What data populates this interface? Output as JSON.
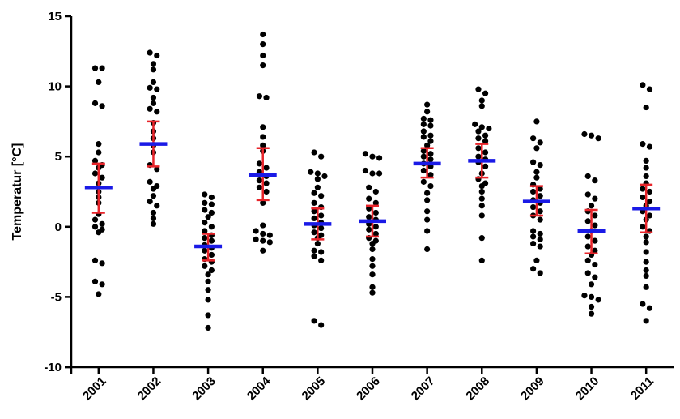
{
  "chart_data": {
    "type": "scatter",
    "xlabel": "",
    "ylabel": "Temperatur [°C]",
    "ylim": [
      -10,
      15
    ],
    "yticks": [
      -10,
      -5,
      0,
      5,
      10,
      15
    ],
    "grid": false,
    "categories": [
      "2001",
      "2002",
      "2003",
      "2004",
      "2005",
      "2006",
      "2007",
      "2008",
      "2009",
      "2010",
      "2011"
    ],
    "colors": {
      "points": "#000000",
      "mean": "#1a1ae6",
      "error": "#e8242a",
      "axis": "#000000"
    },
    "groups": [
      {
        "category": "2001",
        "mean": 2.8,
        "lower": 1.0,
        "upper": 4.5,
        "points": [
          11.3,
          11.3,
          10.3,
          8.8,
          8.6,
          5.9,
          5.3,
          4.7,
          4.4,
          4.2,
          3.8,
          3.5,
          3.1,
          2.5,
          2.1,
          1.7,
          0.9,
          0.5,
          0.2,
          0.0,
          -0.2,
          -0.4,
          -2.4,
          -2.6,
          -3.9,
          -4.1,
          -4.8
        ]
      },
      {
        "category": "2002",
        "mean": 5.9,
        "lower": 4.3,
        "upper": 7.5,
        "points": [
          12.4,
          12.2,
          11.6,
          11.2,
          10.3,
          9.9,
          9.8,
          9.2,
          8.8,
          8.4,
          8.2,
          7.4,
          6.8,
          6.3,
          5.8,
          5.3,
          4.4,
          4.1,
          3.2,
          2.9,
          2.7,
          2.2,
          1.8,
          1.5,
          1.0,
          0.6,
          0.2
        ]
      },
      {
        "category": "2003",
        "mean": -1.4,
        "lower": -2.4,
        "upper": -0.5,
        "points": [
          2.3,
          2.1,
          1.7,
          1.6,
          1.2,
          1.0,
          0.7,
          0.3,
          0.0,
          -0.3,
          -0.6,
          -0.8,
          -1.0,
          -1.3,
          -1.5,
          -1.7,
          -2.0,
          -2.3,
          -2.5,
          -2.8,
          -3.1,
          -3.4,
          -3.9,
          -4.5,
          -5.2,
          -6.3,
          -7.2
        ]
      },
      {
        "category": "2004",
        "mean": 3.7,
        "lower": 1.9,
        "upper": 5.6,
        "points": [
          13.7,
          13.0,
          12.2,
          11.5,
          9.3,
          9.2,
          7.1,
          6.4,
          5.8,
          5.4,
          4.5,
          4.2,
          3.9,
          3.6,
          3.3,
          3.1,
          2.8,
          2.5,
          1.7,
          0.1,
          -0.3,
          -0.5,
          -0.6,
          -0.9,
          -1.0,
          -1.1,
          -1.7
        ]
      },
      {
        "category": "2005",
        "mean": 0.2,
        "lower": -0.9,
        "upper": 1.3,
        "points": [
          5.3,
          5.0,
          3.9,
          3.8,
          3.6,
          3.4,
          2.8,
          2.4,
          2.2,
          1.7,
          1.4,
          1.1,
          0.8,
          0.6,
          0.3,
          0.1,
          -0.1,
          -0.4,
          -0.6,
          -0.8,
          -1.2,
          -1.7,
          -1.8,
          -2.1,
          -2.4,
          -6.7,
          -7.0
        ]
      },
      {
        "category": "2006",
        "mean": 0.4,
        "lower": -0.7,
        "upper": 1.5,
        "points": [
          5.2,
          5.0,
          4.9,
          4.0,
          3.8,
          3.8,
          2.8,
          2.5,
          2.0,
          1.7,
          1.3,
          1.0,
          0.7,
          0.5,
          0.2,
          0.0,
          -0.2,
          -0.5,
          -0.8,
          -1.0,
          -1.2,
          -1.6,
          -2.3,
          -2.8,
          -3.4,
          -4.3,
          -4.7
        ]
      },
      {
        "category": "2007",
        "mean": 4.5,
        "lower": 3.5,
        "upper": 5.6,
        "points": [
          8.7,
          8.2,
          7.7,
          7.6,
          7.3,
          7.2,
          6.8,
          6.5,
          6.4,
          6.1,
          5.8,
          5.4,
          5.2,
          5.0,
          4.8,
          4.5,
          4.3,
          4.0,
          3.7,
          3.2,
          2.9,
          2.4,
          1.9,
          1.1,
          0.5,
          -0.3,
          -1.6
        ]
      },
      {
        "category": "2008",
        "mean": 4.7,
        "lower": 3.5,
        "upper": 5.9,
        "points": [
          9.8,
          9.5,
          9.0,
          8.6,
          7.3,
          7.1,
          7.0,
          6.8,
          6.5,
          6.3,
          6.1,
          5.6,
          5.3,
          5.0,
          4.8,
          4.6,
          4.3,
          3.8,
          3.4,
          3.1,
          2.9,
          2.5,
          2.0,
          1.5,
          0.8,
          -0.8,
          -2.4
        ]
      },
      {
        "category": "2009",
        "mean": 1.8,
        "lower": 0.8,
        "upper": 2.9,
        "points": [
          7.5,
          6.3,
          6.0,
          5.6,
          4.6,
          4.4,
          3.9,
          3.5,
          3.0,
          2.7,
          2.5,
          2.2,
          1.9,
          1.7,
          1.4,
          1.1,
          0.8,
          0.5,
          -0.3,
          -0.5,
          -0.7,
          -0.9,
          -1.2,
          -1.4,
          -2.4,
          -3.0,
          -3.3
        ]
      },
      {
        "category": "2010",
        "mean": -0.3,
        "lower": -1.9,
        "upper": 1.2,
        "points": [
          6.6,
          6.5,
          6.3,
          3.6,
          3.3,
          2.3,
          2.0,
          1.5,
          1.1,
          0.8,
          0.4,
          0.1,
          -0.3,
          -0.7,
          -1.0,
          -1.4,
          -1.7,
          -2.0,
          -2.4,
          -2.7,
          -3.3,
          -3.6,
          -4.1,
          -4.9,
          -5.0,
          -5.2,
          -5.7,
          -6.2
        ]
      },
      {
        "category": "2011",
        "mean": 1.3,
        "lower": -0.4,
        "upper": 3.0,
        "points": [
          10.1,
          9.8,
          8.5,
          5.9,
          5.7,
          4.7,
          4.2,
          3.6,
          3.1,
          2.7,
          2.5,
          2.1,
          1.8,
          1.5,
          1.1,
          0.8,
          0.5,
          0.0,
          -0.3,
          -0.7,
          -1.1,
          -1.8,
          -2.5,
          -3.1,
          -3.5,
          -4.3,
          -5.5,
          -5.8,
          -6.7
        ]
      }
    ]
  }
}
